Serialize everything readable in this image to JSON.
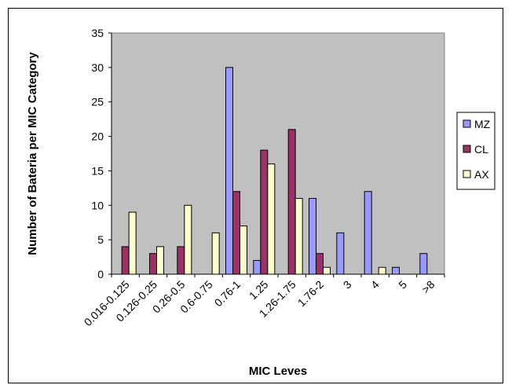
{
  "chart_data": {
    "type": "bar",
    "title": "",
    "xlabel": "MIC Leves",
    "ylabel": "Number of Bateria per MIC Category",
    "ylim": [
      0,
      35
    ],
    "yticks": [
      0,
      5,
      10,
      15,
      20,
      25,
      30,
      35
    ],
    "grid": false,
    "legend_position": "right",
    "categories": [
      "0.016-0.125",
      "0.126-0.25",
      "0.26-0.5",
      "0.6-0.75",
      "0.76-1",
      "1.25",
      "1.26-1.75",
      "1.76-2",
      "3",
      "4",
      "5",
      ">8"
    ],
    "series": [
      {
        "name": "MZ",
        "color": "#9999ff",
        "values": [
          0,
          0,
          0,
          0,
          30,
          2,
          0,
          11,
          6,
          12,
          1,
          3
        ]
      },
      {
        "name": "CL",
        "color": "#993366",
        "values": [
          4,
          3,
          4,
          0,
          12,
          18,
          21,
          3,
          0,
          0,
          0,
          0
        ]
      },
      {
        "name": "AX",
        "color": "#ffffcc",
        "values": [
          9,
          4,
          10,
          6,
          7,
          16,
          11,
          1,
          0,
          1,
          0,
          0
        ]
      }
    ],
    "plot_background": "#c0c0c0"
  }
}
